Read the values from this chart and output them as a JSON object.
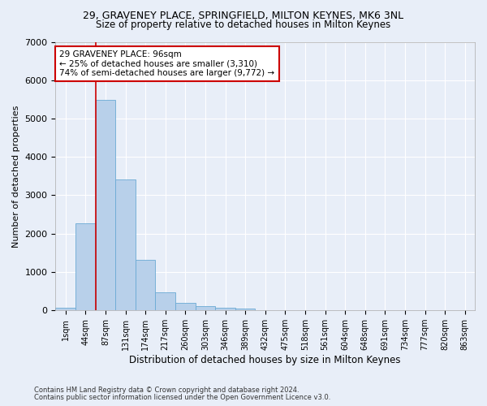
{
  "title1": "29, GRAVENEY PLACE, SPRINGFIELD, MILTON KEYNES, MK6 3NL",
  "title2": "Size of property relative to detached houses in Milton Keynes",
  "xlabel": "Distribution of detached houses by size in Milton Keynes",
  "ylabel": "Number of detached properties",
  "footnote1": "Contains HM Land Registry data © Crown copyright and database right 2024.",
  "footnote2": "Contains public sector information licensed under the Open Government Licence v3.0.",
  "bin_labels": [
    "1sqm",
    "44sqm",
    "87sqm",
    "131sqm",
    "174sqm",
    "217sqm",
    "260sqm",
    "303sqm",
    "346sqm",
    "389sqm",
    "432sqm",
    "475sqm",
    "518sqm",
    "561sqm",
    "604sqm",
    "648sqm",
    "691sqm",
    "734sqm",
    "777sqm",
    "820sqm",
    "863sqm"
  ],
  "bar_values": [
    75,
    2280,
    5480,
    3420,
    1310,
    480,
    200,
    110,
    75,
    50,
    0,
    0,
    0,
    0,
    0,
    0,
    0,
    0,
    0,
    0,
    0
  ],
  "bar_color": "#b8d0ea",
  "bar_edgecolor": "#6aaad4",
  "vline_x": 2.0,
  "vline_color": "#cc0000",
  "annotation_text": "29 GRAVENEY PLACE: 96sqm\n← 25% of detached houses are smaller (3,310)\n74% of semi-detached houses are larger (9,772) →",
  "annotation_box_color": "white",
  "annotation_box_edgecolor": "#cc0000",
  "ylim": [
    0,
    7000
  ],
  "yticks": [
    0,
    1000,
    2000,
    3000,
    4000,
    5000,
    6000,
    7000
  ],
  "bg_color": "#e8eef8",
  "grid_color": "white",
  "title1_fontsize": 9,
  "title2_fontsize": 8.5,
  "xlabel_fontsize": 8.5,
  "ylabel_fontsize": 8
}
